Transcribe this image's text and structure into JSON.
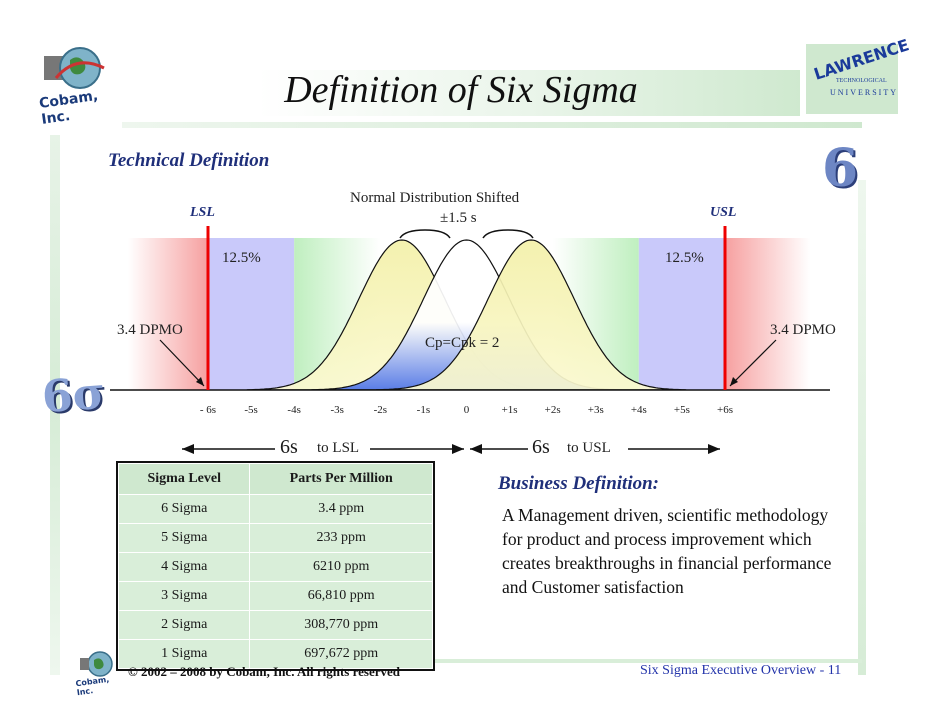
{
  "header": {
    "title": "Definition of Six Sigma",
    "left_logo_text": "Cobam, Inc.",
    "right_logo_top": "LAWRENCE",
    "right_logo_mid": "TECHNOLOGICAL",
    "right_logo_bottom": "UNIVERSITY",
    "big_six": "6",
    "side_logo_text": "6σ"
  },
  "technical": {
    "heading": "Technical Definition",
    "chart_title_line1": "Normal Distribution Shifted",
    "chart_title_line2": "±1.5 s",
    "lsl": "LSL",
    "usl": "USL",
    "pct_left": "12.5%",
    "pct_right": "12.5%",
    "dpmo_left": "3.4 DPMO",
    "dpmo_right": "3.4 DPMO",
    "cp": "Cp=Cpk = 2",
    "ticks": [
      "- 6s",
      "-5s",
      "-4s",
      "-3s",
      "-2s",
      "-1s",
      "0",
      "+1s",
      "+2s",
      "+3s",
      "+4s",
      "+5s",
      "+6s"
    ],
    "range_left_big": "6s",
    "range_left_small": "to LSL",
    "range_right_big": "6s",
    "range_right_small": "to USL"
  },
  "chart_data": {
    "type": "area",
    "title": "Normal Distribution Shifted",
    "x": [
      -6,
      -5,
      -4,
      -3,
      -2,
      -1,
      0,
      1,
      2,
      3,
      4,
      5,
      6
    ],
    "xlim": [
      -6,
      6
    ],
    "series": [
      {
        "mean": -1.5,
        "sd": 1,
        "color": "#fbf7c4"
      },
      {
        "mean": 0,
        "sd": 1,
        "color": "#4d73e8"
      },
      {
        "mean": 1.5,
        "sd": 1,
        "color": "#fbf7c4"
      }
    ],
    "lsl": -6,
    "usl": 6
  },
  "table": {
    "headers": [
      "Sigma Level",
      "Parts Per Million"
    ],
    "rows": [
      [
        "6 Sigma",
        "3.4 ppm"
      ],
      [
        "5 Sigma",
        "233 ppm"
      ],
      [
        "4 Sigma",
        "6210 ppm"
      ],
      [
        "3 Sigma",
        "66,810 ppm"
      ],
      [
        "2 Sigma",
        "308,770 ppm"
      ],
      [
        "1 Sigma",
        "697,672 ppm"
      ]
    ]
  },
  "business": {
    "heading": "Business Definition:",
    "text": "A Management driven, scientific methodology for product and process improvement which creates breakthroughs in financial performance and Customer satisfaction"
  },
  "footer": {
    "copyright": "© 2002 – 2008 by Cobam, Inc. All rights reserved",
    "page": "Six Sigma Executive Overview - 11",
    "small_logo_text": "Cobam, Inc."
  }
}
